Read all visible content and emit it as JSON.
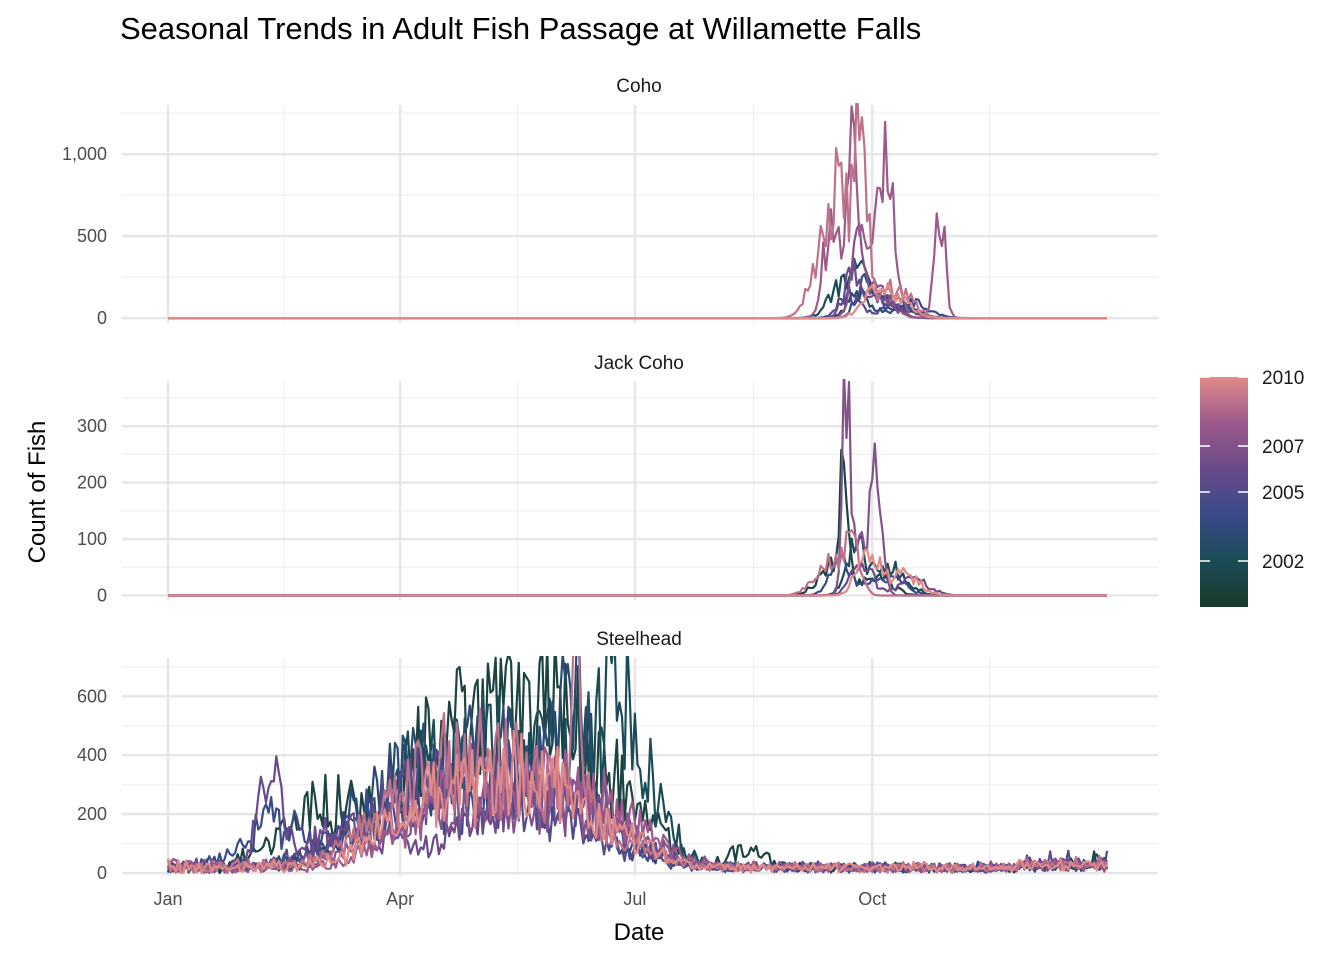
{
  "chart_data": {
    "type": "line",
    "title": "Seasonal Trends in Adult Fish Passage at Willamette Falls",
    "xlabel": "Date",
    "ylabel": "Count of Fish",
    "x_ticks": [
      "Jan",
      "Apr",
      "Jul",
      "Oct"
    ],
    "x_tick_days": [
      1,
      91,
      182,
      274
    ],
    "xlim": [
      1,
      365
    ],
    "legend": {
      "title": "",
      "placement": "right",
      "type": "colorbar",
      "range": [
        2000,
        2010
      ],
      "labels": [
        2002,
        2005,
        2007,
        2010
      ],
      "colors": [
        "#1a3a2a",
        "#1a4c58",
        "#3a4a88",
        "#6a4a8a",
        "#9c5a8c",
        "#e08a88"
      ]
    },
    "grid": true,
    "years": [
      2001,
      2002,
      2003,
      2004,
      2005,
      2006,
      2007,
      2008,
      2009,
      2010
    ],
    "panels": [
      {
        "label": "Coho",
        "ylim": [
          -30,
          1300
        ],
        "y_ticks": [
          0,
          500,
          1000
        ],
        "y_tick_labels": [
          "0",
          "500",
          "1,000"
        ],
        "active_days": [
          225,
          330
        ],
        "series": [
          {
            "year": 2002,
            "peaks": [
              [
                270,
                470,
                2.5
              ],
              [
                262,
                200,
                5
              ],
              [
                280,
                120,
                8
              ]
            ]
          },
          {
            "year": 2003,
            "peaks": [
              [
                268,
                160,
                4
              ],
              [
                285,
                80,
                6
              ]
            ]
          },
          {
            "year": 2004,
            "peaks": [
              [
                272,
                240,
                4
              ],
              [
                290,
                100,
                6
              ]
            ]
          },
          {
            "year": 2005,
            "peaks": [
              [
                265,
                160,
                4
              ],
              [
                283,
                90,
                6
              ]
            ]
          },
          {
            "year": 2006,
            "peaks": [
              [
                266,
                300,
                3
              ],
              [
                278,
                140,
                5
              ]
            ]
          },
          {
            "year": 2007,
            "peaks": [
              [
                268,
                420,
                2.5
              ],
              [
                276,
                200,
                5
              ]
            ]
          },
          {
            "year": 2008,
            "peaks": [
              [
                258,
                600,
                3
              ],
              [
                266,
                950,
                2
              ],
              [
                280,
                760,
                3
              ],
              [
                300,
                740,
                2
              ],
              [
                272,
                500,
                6
              ]
            ]
          },
          {
            "year": 2009,
            "peaks": [
              [
                270,
                1280,
                2.5
              ],
              [
                262,
                700,
                4
              ],
              [
                255,
                380,
                5
              ],
              [
                283,
                200,
                6
              ]
            ]
          },
          {
            "year": 2010,
            "peaks": [
              [
                275,
                180,
                5
              ],
              [
                285,
                110,
                5
              ]
            ]
          }
        ]
      },
      {
        "label": "Jack Coho",
        "ylim": [
          -8,
          380
        ],
        "y_ticks": [
          0,
          100,
          200,
          300
        ],
        "y_tick_labels": [
          "0",
          "100",
          "200",
          "300"
        ],
        "active_days": [
          225,
          330
        ],
        "series": [
          {
            "year": 2001,
            "peaks": [
              [
                263,
                220,
                1.5
              ],
              [
                258,
                60,
                5
              ],
              [
                275,
                40,
                6
              ]
            ]
          },
          {
            "year": 2002,
            "peaks": [
              [
                268,
                90,
                4
              ],
              [
                282,
                50,
                6
              ]
            ]
          },
          {
            "year": 2004,
            "peaks": [
              [
                262,
                70,
                4
              ],
              [
                280,
                40,
                6
              ]
            ]
          },
          {
            "year": 2006,
            "peaks": [
              [
                270,
                60,
                4
              ],
              [
                290,
                30,
                6
              ]
            ]
          },
          {
            "year": 2007,
            "peaks": [
              [
                264,
                370,
                1.5
              ],
              [
                276,
                210,
                2
              ],
              [
                270,
                120,
                4
              ]
            ]
          },
          {
            "year": 2009,
            "peaks": [
              [
                266,
                110,
                3
              ],
              [
                256,
                60,
                5
              ]
            ]
          },
          {
            "year": 2010,
            "peaks": [
              [
                272,
                90,
                4
              ],
              [
                286,
                40,
                6
              ]
            ]
          }
        ]
      },
      {
        "label": "Steelhead",
        "ylim": [
          -10,
          730
        ],
        "y_ticks": [
          0,
          200,
          400,
          600
        ],
        "y_tick_labels": [
          "0",
          "200",
          "400",
          "600"
        ],
        "active_days": [
          1,
          365
        ],
        "series": [
          {
            "year": 2001,
            "peaks": [
              [
                148,
                550,
                25
              ],
              [
                105,
                350,
                20
              ],
              [
                60,
                200,
                15
              ],
              [
                226,
                130,
                6
              ]
            ]
          },
          {
            "year": 2002,
            "peaks": [
              [
                150,
                430,
                28
              ],
              [
                100,
                300,
                20
              ],
              [
                178,
                380,
                8
              ]
            ]
          },
          {
            "year": 2003,
            "peaks": [
              [
                135,
                400,
                25
              ],
              [
                90,
                250,
                20
              ],
              [
                160,
                460,
                6
              ]
            ]
          },
          {
            "year": 2004,
            "peaks": [
              [
                140,
                330,
                25
              ],
              [
                85,
                200,
                18
              ],
              [
                40,
                160,
                10
              ]
            ]
          },
          {
            "year": 2005,
            "peaks": [
              [
                130,
                250,
                30
              ],
              [
                95,
                170,
                22
              ]
            ]
          },
          {
            "year": 2006,
            "peaks": [
              [
                145,
                280,
                25
              ],
              [
                40,
                360,
                4
              ],
              [
                70,
                150,
                15
              ]
            ]
          },
          {
            "year": 2007,
            "peaks": [
              [
                150,
                240,
                28
              ],
              [
                100,
                170,
                20
              ]
            ]
          },
          {
            "year": 2008,
            "peaks": [
              [
                155,
                300,
                25
              ],
              [
                110,
                200,
                20
              ]
            ]
          },
          {
            "year": 2009,
            "peaks": [
              [
                135,
                330,
                28
              ],
              [
                160,
                560,
                2
              ],
              [
                100,
                200,
                20
              ]
            ]
          },
          {
            "year": 2010,
            "peaks": [
              [
                145,
                290,
                25
              ],
              [
                105,
                200,
                20
              ]
            ]
          }
        ]
      }
    ]
  }
}
